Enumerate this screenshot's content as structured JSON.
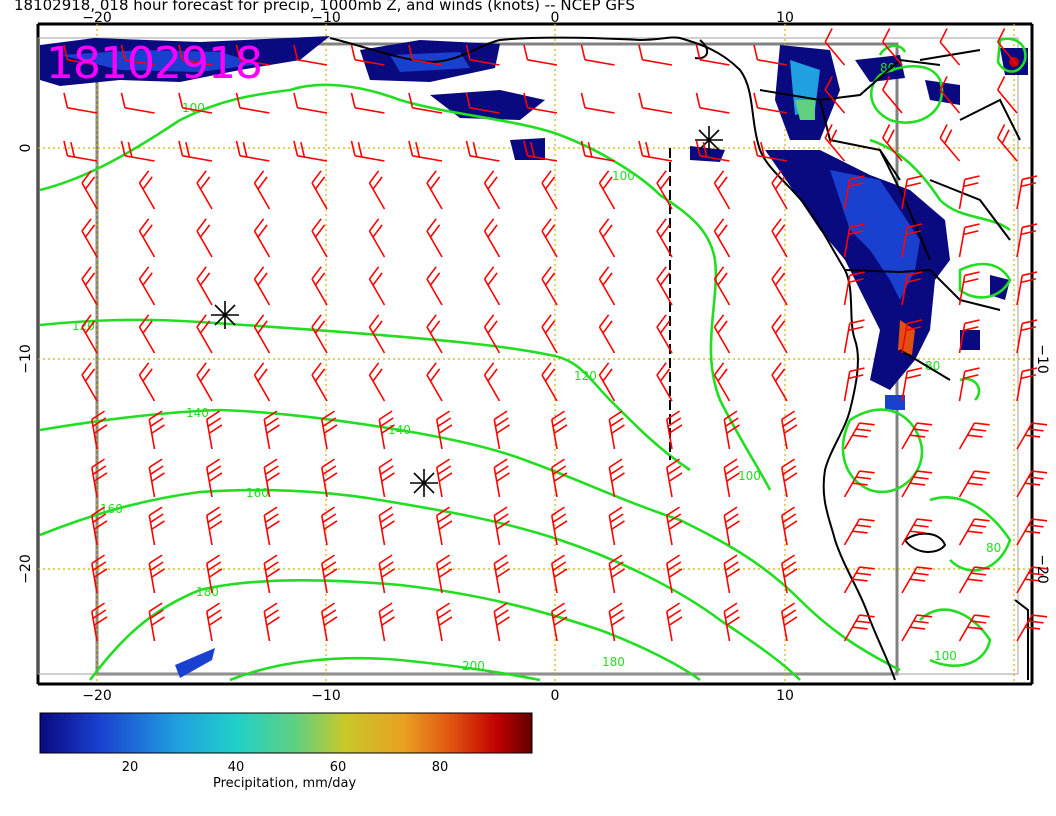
{
  "title": "18102918, 018 hour forecast for precip, 1000mb Z, and winds (knots) -- NCEP GFS",
  "stamp": "18102918",
  "axes": {
    "top_lon_labels": [
      "−20",
      "−10",
      "0",
      "10"
    ],
    "bottom_lon_labels": [
      "−20",
      "−10",
      "0",
      "10"
    ],
    "left_lat_labels": [
      "0",
      "−10",
      "−20"
    ],
    "right_lat_labels": [
      "−10",
      "−20"
    ]
  },
  "contours": {
    "color": "#22dd22",
    "labels": [
      "100",
      "100",
      "120",
      "120",
      "140",
      "140",
      "160",
      "160",
      "180",
      "180",
      "200",
      "100",
      "80",
      "80",
      "80",
      "100"
    ]
  },
  "colorbar": {
    "label": "Precipitation, mm/day",
    "ticks": [
      "20",
      "40",
      "60",
      "80"
    ],
    "colors": [
      "#0a0a80",
      "#1a40d0",
      "#20a0e0",
      "#20d0c8",
      "#60d080",
      "#c8c828",
      "#e8a020",
      "#e05010",
      "#c00000",
      "#600000"
    ]
  },
  "colors": {
    "barb": "#ff0000",
    "coast": "#000000",
    "grid": "#d4b400",
    "frame": "#808080"
  }
}
